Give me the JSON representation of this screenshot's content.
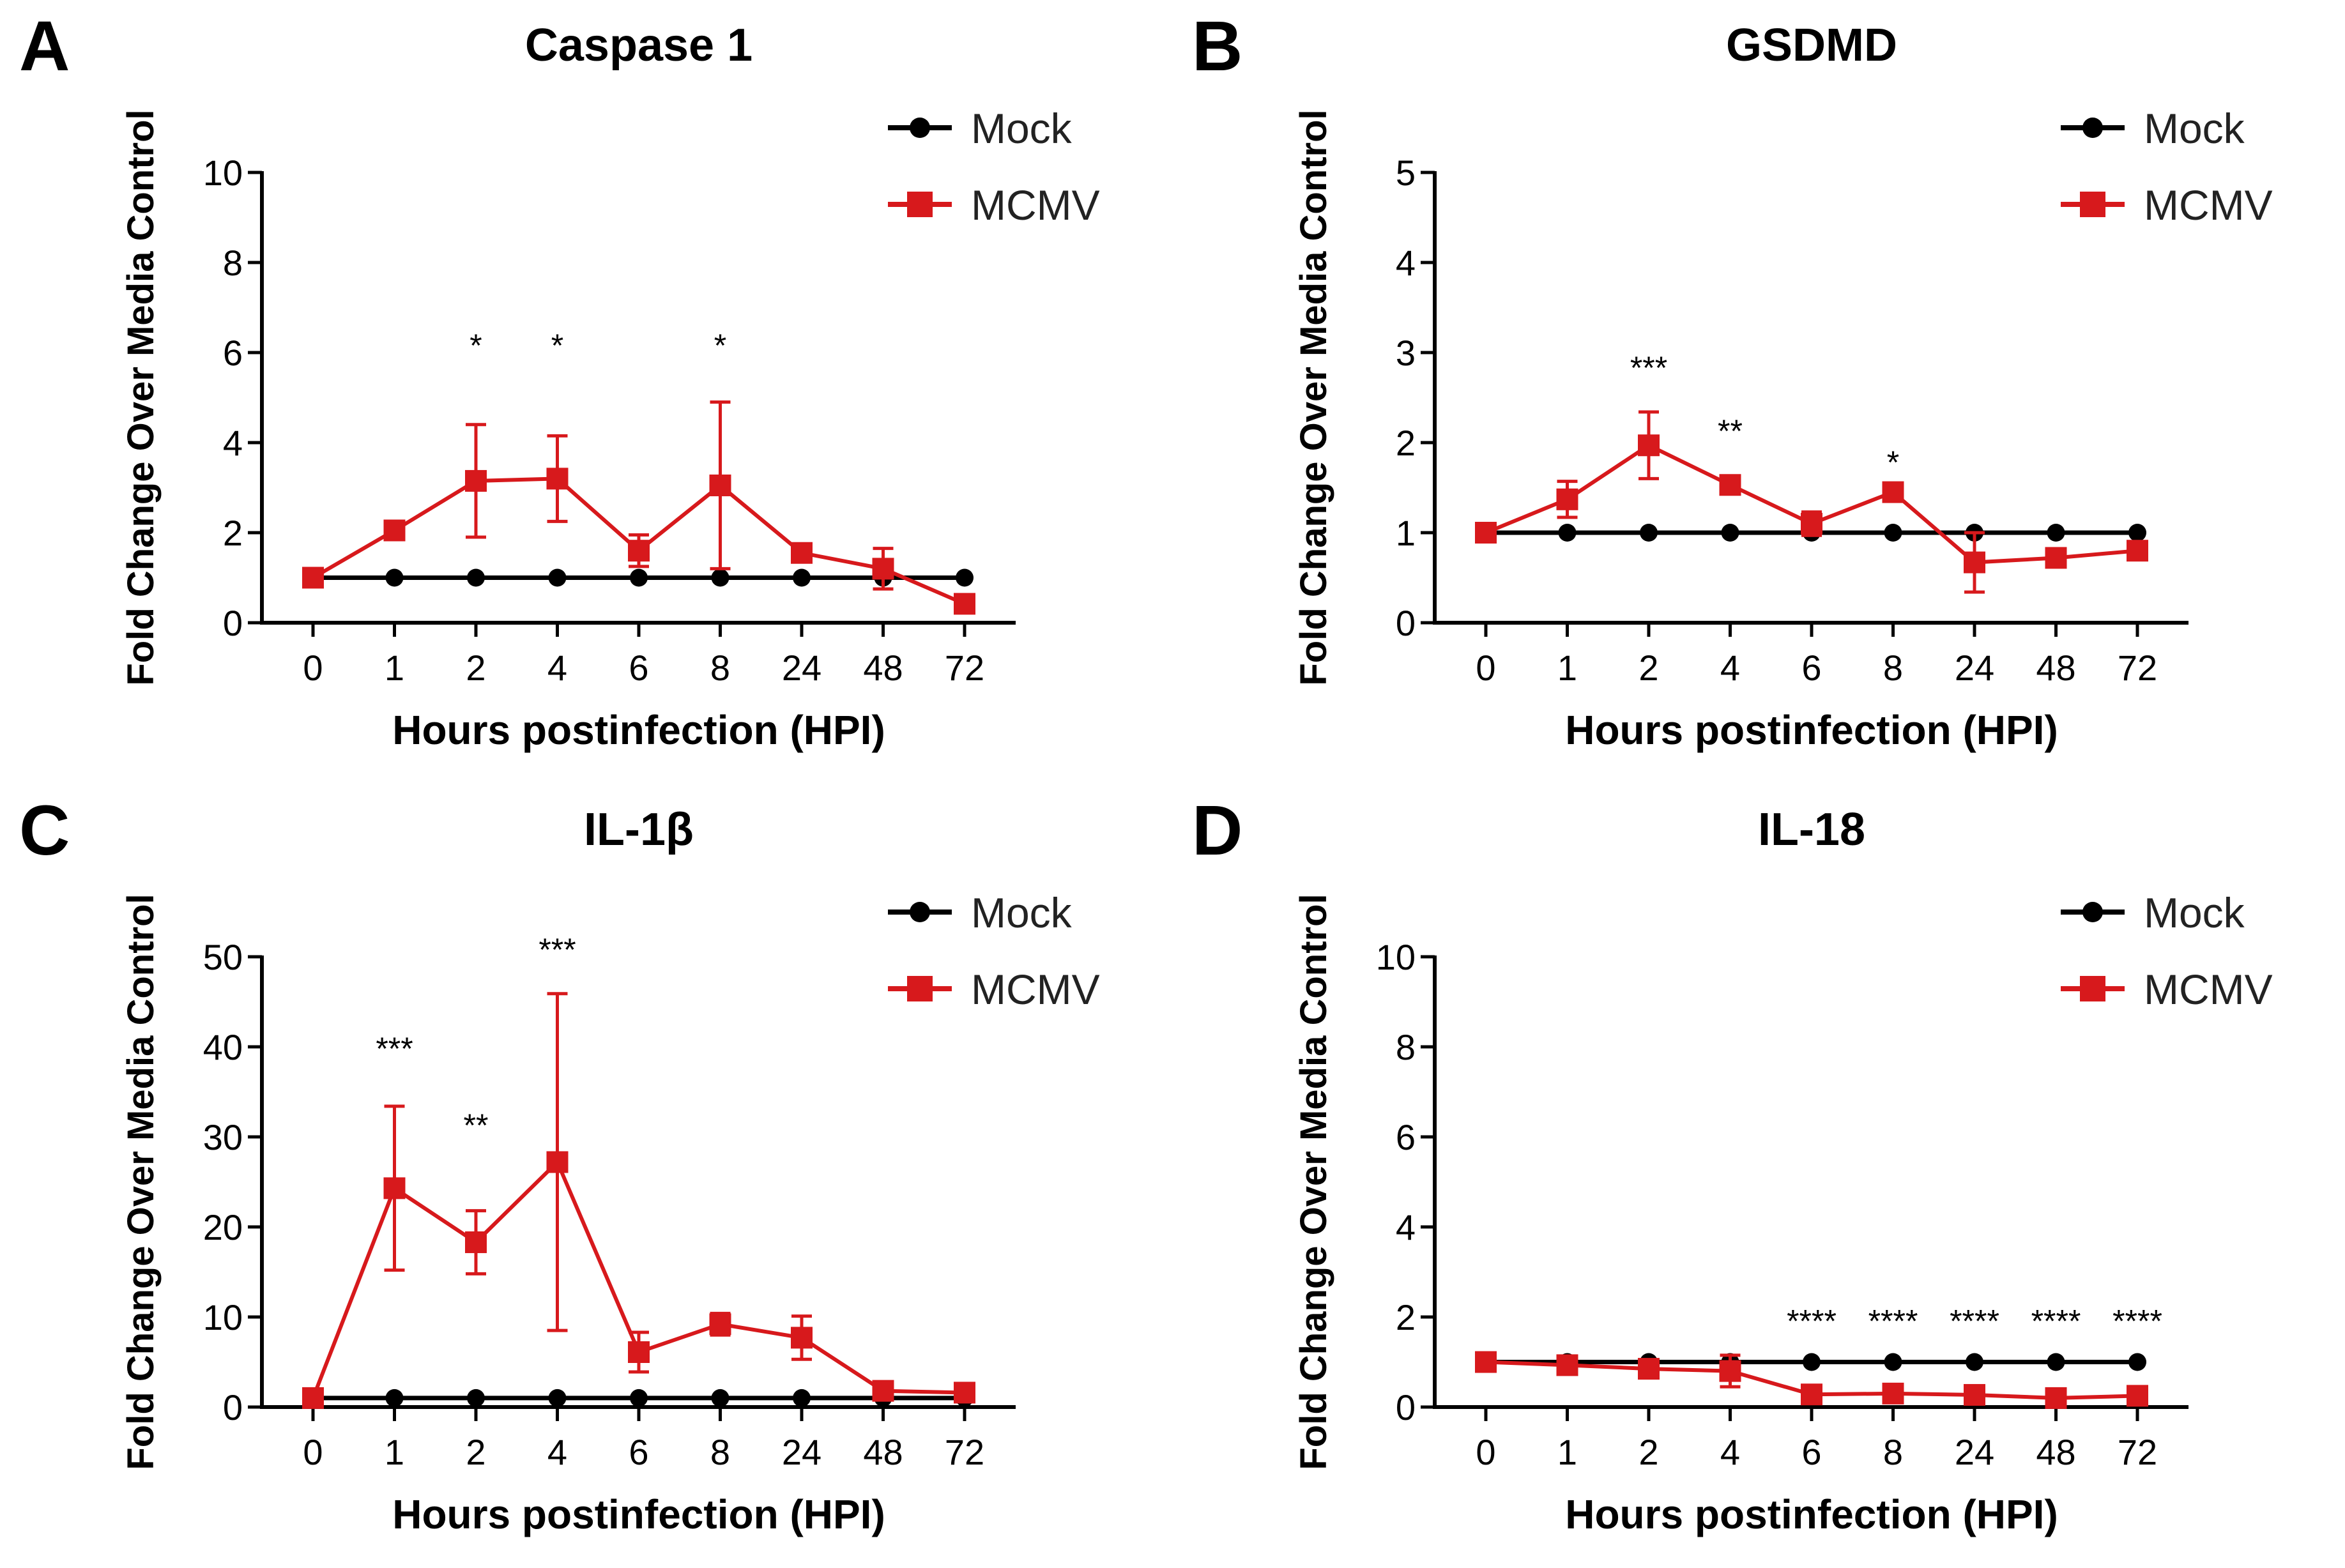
{
  "colors": {
    "mock": "#000000",
    "mcmv": "#d7191c"
  },
  "chart_data": [
    {
      "type": "line",
      "panel_label": "A",
      "title": "Caspase 1",
      "xlabel": "Hours postinfection (HPI)",
      "ylabel": "Fold Change Over Media Control",
      "categories": [
        "0",
        "1",
        "2",
        "4",
        "6",
        "8",
        "24",
        "48",
        "72"
      ],
      "ylim": [
        0,
        10
      ],
      "yticks": [
        0,
        2,
        4,
        6,
        8,
        10
      ],
      "legend": "top-right",
      "series": [
        {
          "name": "Mock",
          "values": [
            1,
            1,
            1,
            1,
            1,
            1,
            1,
            1,
            1
          ],
          "errors": [
            0,
            0,
            0,
            0,
            0,
            0,
            0,
            0,
            0
          ]
        },
        {
          "name": "MCMV",
          "values": [
            1.0,
            2.05,
            3.15,
            3.2,
            1.6,
            3.05,
            1.55,
            1.2,
            0.42
          ],
          "errors": [
            0.05,
            0.1,
            1.25,
            0.95,
            0.35,
            1.85,
            0.1,
            0.45,
            0.05
          ]
        }
      ],
      "annotations": [
        {
          "x": "2",
          "y": 6.2,
          "text": "*"
        },
        {
          "x": "4",
          "y": 6.2,
          "text": "*"
        },
        {
          "x": "8",
          "y": 6.2,
          "text": "*"
        }
      ]
    },
    {
      "type": "line",
      "panel_label": "B",
      "title": "GSDMD",
      "xlabel": "Hours postinfection (HPI)",
      "ylabel": "Fold Change Over Media Control",
      "categories": [
        "0",
        "1",
        "2",
        "4",
        "6",
        "8",
        "24",
        "48",
        "72"
      ],
      "ylim": [
        0,
        5
      ],
      "yticks": [
        0,
        1,
        2,
        3,
        4,
        5
      ],
      "legend": "top-right",
      "series": [
        {
          "name": "Mock",
          "values": [
            1,
            1,
            1,
            1,
            1,
            1,
            1,
            1,
            1
          ],
          "errors": [
            0,
            0,
            0,
            0,
            0,
            0,
            0,
            0,
            0
          ]
        },
        {
          "name": "MCMV",
          "values": [
            1.0,
            1.37,
            1.97,
            1.53,
            1.1,
            1.45,
            0.67,
            0.72,
            0.8
          ],
          "errors": [
            0.03,
            0.2,
            0.37,
            0.03,
            0.13,
            0.05,
            0.33,
            0.08,
            0.03
          ]
        }
      ],
      "annotations": [
        {
          "x": "2",
          "y": 2.85,
          "text": "***"
        },
        {
          "x": "4",
          "y": 2.15,
          "text": "**"
        },
        {
          "x": "8",
          "y": 1.8,
          "text": "*"
        }
      ]
    },
    {
      "type": "line",
      "panel_label": "C",
      "title": "IL-1β",
      "xlabel": "Hours postinfection (HPI)",
      "ylabel": "Fold Change Over Media Control",
      "categories": [
        "0",
        "1",
        "2",
        "4",
        "6",
        "8",
        "24",
        "48",
        "72"
      ],
      "ylim": [
        0,
        50
      ],
      "yticks": [
        0,
        10,
        20,
        30,
        40,
        50
      ],
      "legend": "top-right",
      "series": [
        {
          "name": "Mock",
          "values": [
            1,
            1,
            1,
            1,
            1,
            1,
            1,
            1,
            1
          ],
          "errors": [
            0,
            0,
            0,
            0,
            0,
            0,
            0,
            0,
            0
          ]
        },
        {
          "name": "MCMV",
          "values": [
            1.0,
            24.3,
            18.3,
            27.2,
            6.1,
            9.2,
            7.7,
            1.8,
            1.6
          ],
          "errors": [
            0.2,
            9.1,
            3.5,
            18.7,
            2.2,
            1.2,
            2.4,
            0.3,
            0.6
          ]
        }
      ],
      "annotations": [
        {
          "x": "1",
          "y": 40,
          "text": "***"
        },
        {
          "x": "2",
          "y": 31.5,
          "text": "**"
        },
        {
          "x": "4",
          "y": 51,
          "text": "***"
        }
      ]
    },
    {
      "type": "line",
      "panel_label": "D",
      "title": "IL-18",
      "xlabel": "Hours postinfection (HPI)",
      "ylabel": "Fold Change Over Media Control",
      "categories": [
        "0",
        "1",
        "2",
        "4",
        "6",
        "8",
        "24",
        "48",
        "72"
      ],
      "ylim": [
        0,
        10
      ],
      "yticks": [
        0,
        2,
        4,
        6,
        8,
        10
      ],
      "legend": "top-right",
      "series": [
        {
          "name": "Mock",
          "values": [
            1,
            1,
            1,
            1,
            1,
            1,
            1,
            1,
            1
          ],
          "errors": [
            0,
            0,
            0,
            0,
            0,
            0,
            0,
            0,
            0
          ]
        },
        {
          "name": "MCMV",
          "values": [
            1.0,
            0.93,
            0.85,
            0.8,
            0.28,
            0.3,
            0.27,
            0.2,
            0.25
          ],
          "errors": [
            0.05,
            0.1,
            0.2,
            0.35,
            0.05,
            0.05,
            0.05,
            0.05,
            0.05
          ]
        }
      ],
      "annotations": [
        {
          "x": "6",
          "y": 1.95,
          "text": "****"
        },
        {
          "x": "8",
          "y": 1.95,
          "text": "****"
        },
        {
          "x": "24",
          "y": 1.95,
          "text": "****"
        },
        {
          "x": "48",
          "y": 1.95,
          "text": "****"
        },
        {
          "x": "72",
          "y": 1.95,
          "text": "****"
        }
      ]
    }
  ]
}
